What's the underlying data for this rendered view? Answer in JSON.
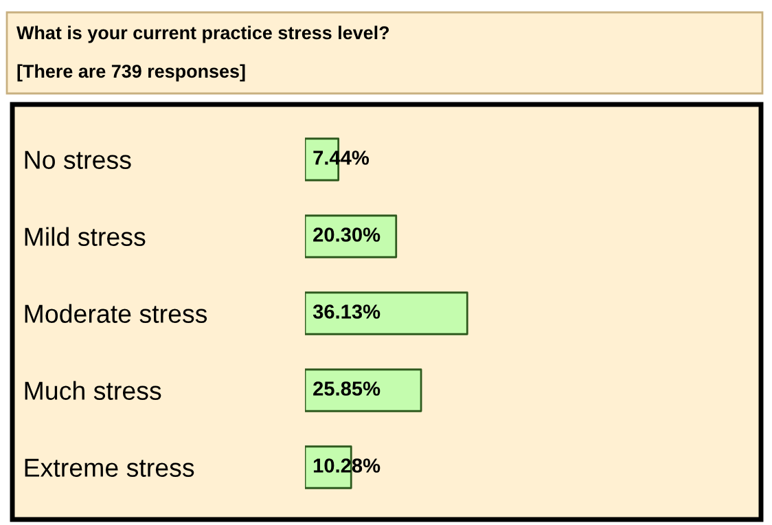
{
  "chart_data": {
    "type": "bar",
    "orientation": "horizontal",
    "title": "What is your current practice stress level?",
    "subtitle": "[There are 739 responses]",
    "categories": [
      "No stress",
      "Mild stress",
      "Moderate stress",
      "Much stress",
      "Extreme stress"
    ],
    "values": [
      7.44,
      20.3,
      36.13,
      25.85,
      10.28
    ],
    "value_labels": [
      "7.44%",
      "20.30%",
      "36.13%",
      "25.85%",
      "10.28%"
    ],
    "color": "#c4fcae"
  }
}
